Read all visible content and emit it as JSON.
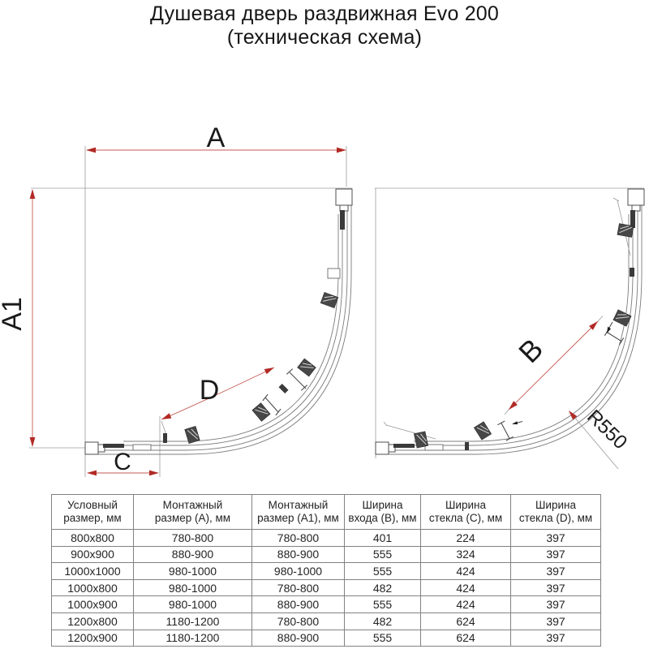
{
  "title": {
    "line1": "Душевая дверь раздвижная Evo 200",
    "line2": "(техническая схема)"
  },
  "diagram_left": {
    "dim_a": "A",
    "dim_a1": "A1",
    "dim_c": "C",
    "dim_d": "D"
  },
  "diagram_right": {
    "dim_b": "B",
    "radius": "R550"
  },
  "colors": {
    "dimension_red": "#b22a26",
    "dimension_red_light": "#c45a54",
    "drawing_gray": "#7c7c7c",
    "table_border": "#828282"
  },
  "table": {
    "headers": [
      {
        "line1": "Условный",
        "line2": "размер, мм"
      },
      {
        "line1": "Монтажный",
        "line2": "размер (А), мм"
      },
      {
        "line1": "Монтажный",
        "line2": "размер (А1), мм"
      },
      {
        "line1": "Ширина",
        "line2": "входа (В), мм"
      },
      {
        "line1": "Ширина",
        "line2": "стекла (С), мм"
      },
      {
        "line1": "Ширина",
        "line2": "стекла (D), мм"
      }
    ],
    "rows": [
      [
        "800x800",
        "780-800",
        "780-800",
        "401",
        "224",
        "397"
      ],
      [
        "900x900",
        "880-900",
        "880-900",
        "555",
        "324",
        "397"
      ],
      [
        "1000x1000",
        "980-1000",
        "980-1000",
        "555",
        "424",
        "397"
      ],
      [
        "1000x800",
        "980-1000",
        "780-800",
        "482",
        "424",
        "397"
      ],
      [
        "1000x900",
        "980-1000",
        "880-900",
        "555",
        "424",
        "397"
      ],
      [
        "1200x800",
        "1180-1200",
        "780-800",
        "482",
        "624",
        "397"
      ],
      [
        "1200x900",
        "1180-1200",
        "880-900",
        "555",
        "624",
        "397"
      ]
    ]
  }
}
